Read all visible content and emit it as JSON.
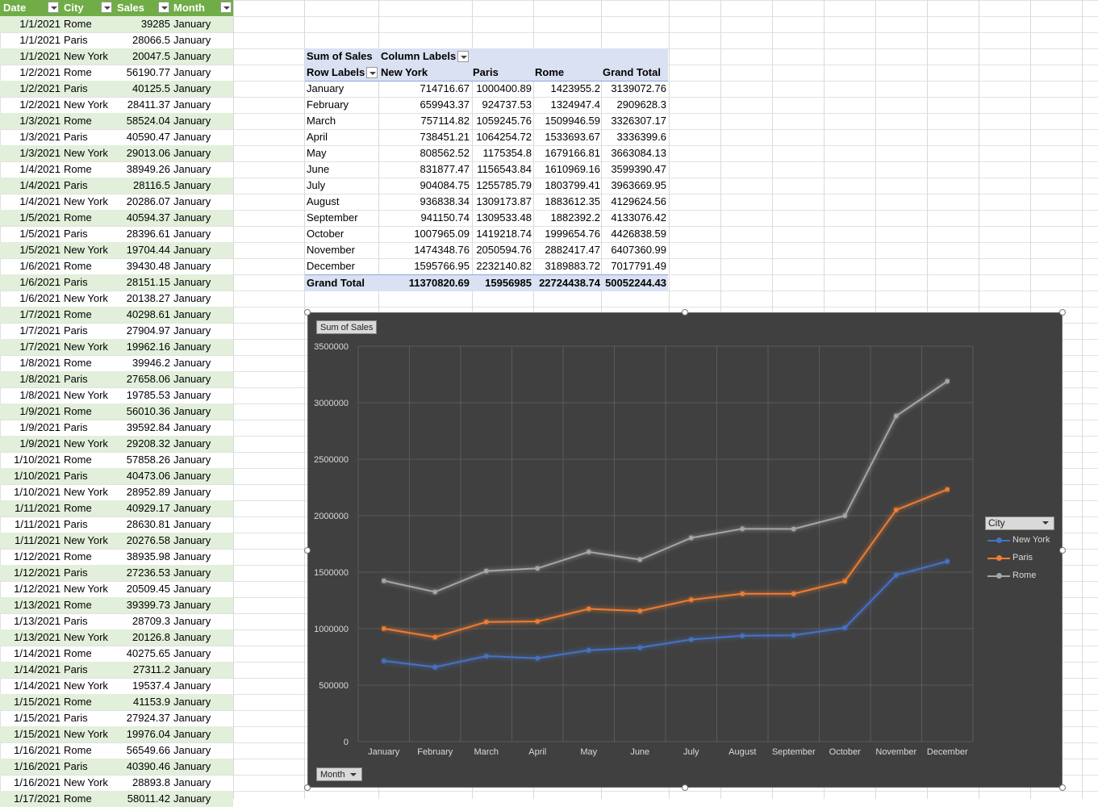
{
  "source_table": {
    "headers": [
      "Date",
      "City",
      "Sales",
      "Month"
    ],
    "rows": [
      [
        "1/1/2021",
        "Rome",
        "39285",
        "January"
      ],
      [
        "1/1/2021",
        "Paris",
        "28066.5",
        "January"
      ],
      [
        "1/1/2021",
        "New York",
        "20047.5",
        "January"
      ],
      [
        "1/2/2021",
        "Rome",
        "56190.77",
        "January"
      ],
      [
        "1/2/2021",
        "Paris",
        "40125.5",
        "January"
      ],
      [
        "1/2/2021",
        "New York",
        "28411.37",
        "January"
      ],
      [
        "1/3/2021",
        "Rome",
        "58524.04",
        "January"
      ],
      [
        "1/3/2021",
        "Paris",
        "40590.47",
        "January"
      ],
      [
        "1/3/2021",
        "New York",
        "29013.06",
        "January"
      ],
      [
        "1/4/2021",
        "Rome",
        "38949.26",
        "January"
      ],
      [
        "1/4/2021",
        "Paris",
        "28116.5",
        "January"
      ],
      [
        "1/4/2021",
        "New York",
        "20286.07",
        "January"
      ],
      [
        "1/5/2021",
        "Rome",
        "40594.37",
        "January"
      ],
      [
        "1/5/2021",
        "Paris",
        "28396.61",
        "January"
      ],
      [
        "1/5/2021",
        "New York",
        "19704.44",
        "January"
      ],
      [
        "1/6/2021",
        "Rome",
        "39430.48",
        "January"
      ],
      [
        "1/6/2021",
        "Paris",
        "28151.15",
        "January"
      ],
      [
        "1/6/2021",
        "New York",
        "20138.27",
        "January"
      ],
      [
        "1/7/2021",
        "Rome",
        "40298.61",
        "January"
      ],
      [
        "1/7/2021",
        "Paris",
        "27904.97",
        "January"
      ],
      [
        "1/7/2021",
        "New York",
        "19962.16",
        "January"
      ],
      [
        "1/8/2021",
        "Rome",
        "39946.2",
        "January"
      ],
      [
        "1/8/2021",
        "Paris",
        "27658.06",
        "January"
      ],
      [
        "1/8/2021",
        "New York",
        "19785.53",
        "January"
      ],
      [
        "1/9/2021",
        "Rome",
        "56010.36",
        "January"
      ],
      [
        "1/9/2021",
        "Paris",
        "39592.84",
        "January"
      ],
      [
        "1/9/2021",
        "New York",
        "29208.32",
        "January"
      ],
      [
        "1/10/2021",
        "Rome",
        "57858.26",
        "January"
      ],
      [
        "1/10/2021",
        "Paris",
        "40473.06",
        "January"
      ],
      [
        "1/10/2021",
        "New York",
        "28952.89",
        "January"
      ],
      [
        "1/11/2021",
        "Rome",
        "40929.17",
        "January"
      ],
      [
        "1/11/2021",
        "Paris",
        "28630.81",
        "January"
      ],
      [
        "1/11/2021",
        "New York",
        "20276.58",
        "January"
      ],
      [
        "1/12/2021",
        "Rome",
        "38935.98",
        "January"
      ],
      [
        "1/12/2021",
        "Paris",
        "27236.53",
        "January"
      ],
      [
        "1/12/2021",
        "New York",
        "20509.45",
        "January"
      ],
      [
        "1/13/2021",
        "Rome",
        "39399.73",
        "January"
      ],
      [
        "1/13/2021",
        "Paris",
        "28709.3",
        "January"
      ],
      [
        "1/13/2021",
        "New York",
        "20126.8",
        "January"
      ],
      [
        "1/14/2021",
        "Rome",
        "40275.65",
        "January"
      ],
      [
        "1/14/2021",
        "Paris",
        "27311.2",
        "January"
      ],
      [
        "1/14/2021",
        "New York",
        "19537.4",
        "January"
      ],
      [
        "1/15/2021",
        "Rome",
        "41153.9",
        "January"
      ],
      [
        "1/15/2021",
        "Paris",
        "27924.37",
        "January"
      ],
      [
        "1/15/2021",
        "New York",
        "19976.04",
        "January"
      ],
      [
        "1/16/2021",
        "Rome",
        "56549.66",
        "January"
      ],
      [
        "1/16/2021",
        "Paris",
        "40390.46",
        "January"
      ],
      [
        "1/16/2021",
        "New York",
        "28893.8",
        "January"
      ],
      [
        "1/17/2021",
        "Rome",
        "58011.42",
        "January"
      ]
    ]
  },
  "pivot": {
    "corner_label": "Sum of Sales",
    "column_labels_label": "Column Labels",
    "row_labels_label": "Row Labels",
    "columns": [
      "New York",
      "Paris",
      "Rome",
      "Grand Total"
    ],
    "rows": [
      [
        "January",
        "714716.67",
        "1000400.89",
        "1423955.2",
        "3139072.76"
      ],
      [
        "February",
        "659943.37",
        "924737.53",
        "1324947.4",
        "2909628.3"
      ],
      [
        "March",
        "757114.82",
        "1059245.76",
        "1509946.59",
        "3326307.17"
      ],
      [
        "April",
        "738451.21",
        "1064254.72",
        "1533693.67",
        "3336399.6"
      ],
      [
        "May",
        "808562.52",
        "1175354.8",
        "1679166.81",
        "3663084.13"
      ],
      [
        "June",
        "831877.47",
        "1156543.84",
        "1610969.16",
        "3599390.47"
      ],
      [
        "July",
        "904084.75",
        "1255785.79",
        "1803799.41",
        "3963669.95"
      ],
      [
        "August",
        "936838.34",
        "1309173.87",
        "1883612.35",
        "4129624.56"
      ],
      [
        "September",
        "941150.74",
        "1309533.48",
        "1882392.2",
        "4133076.42"
      ],
      [
        "October",
        "1007965.09",
        "1419218.74",
        "1999654.76",
        "4426838.59"
      ],
      [
        "November",
        "1474348.76",
        "2050594.76",
        "2882417.47",
        "6407360.99"
      ],
      [
        "December",
        "1595766.95",
        "2232140.82",
        "3189883.72",
        "7017791.49"
      ]
    ],
    "total_row": [
      "Grand Total",
      "11370820.69",
      "15956985",
      "22724438.74",
      "50052244.43"
    ]
  },
  "chart_field_buttons": {
    "value_field": "Sum of Sales",
    "axis_field": "Month",
    "legend_field": "City"
  },
  "chart_data": {
    "type": "line",
    "categories": [
      "January",
      "February",
      "March",
      "April",
      "May",
      "June",
      "July",
      "August",
      "September",
      "October",
      "November",
      "December"
    ],
    "series": [
      {
        "name": "New York",
        "color": "#4472c4",
        "values": [
          714716.67,
          659943.37,
          757114.82,
          738451.21,
          808562.52,
          831877.47,
          904084.75,
          936838.34,
          941150.74,
          1007965.09,
          1474348.76,
          1595766.95
        ]
      },
      {
        "name": "Paris",
        "color": "#ed7d31",
        "values": [
          1000400.89,
          924737.53,
          1059245.76,
          1064254.72,
          1175354.8,
          1156543.84,
          1255785.79,
          1309173.87,
          1309533.48,
          1419218.74,
          2050594.76,
          2232140.82
        ]
      },
      {
        "name": "Rome",
        "color": "#a5a5a5",
        "values": [
          1423955.2,
          1324947.4,
          1509946.59,
          1533693.67,
          1679166.81,
          1610969.16,
          1803799.41,
          1883612.35,
          1882392.2,
          1999654.76,
          2882417.47,
          3189883.72
        ]
      }
    ],
    "yticks": [
      "0",
      "500000",
      "1000000",
      "1500000",
      "2000000",
      "2500000",
      "3000000",
      "3500000"
    ],
    "ylim": [
      0,
      3500000
    ],
    "grid": true,
    "legend": "right",
    "title": "",
    "xlabel": "",
    "ylabel": "",
    "background": "#404040"
  }
}
